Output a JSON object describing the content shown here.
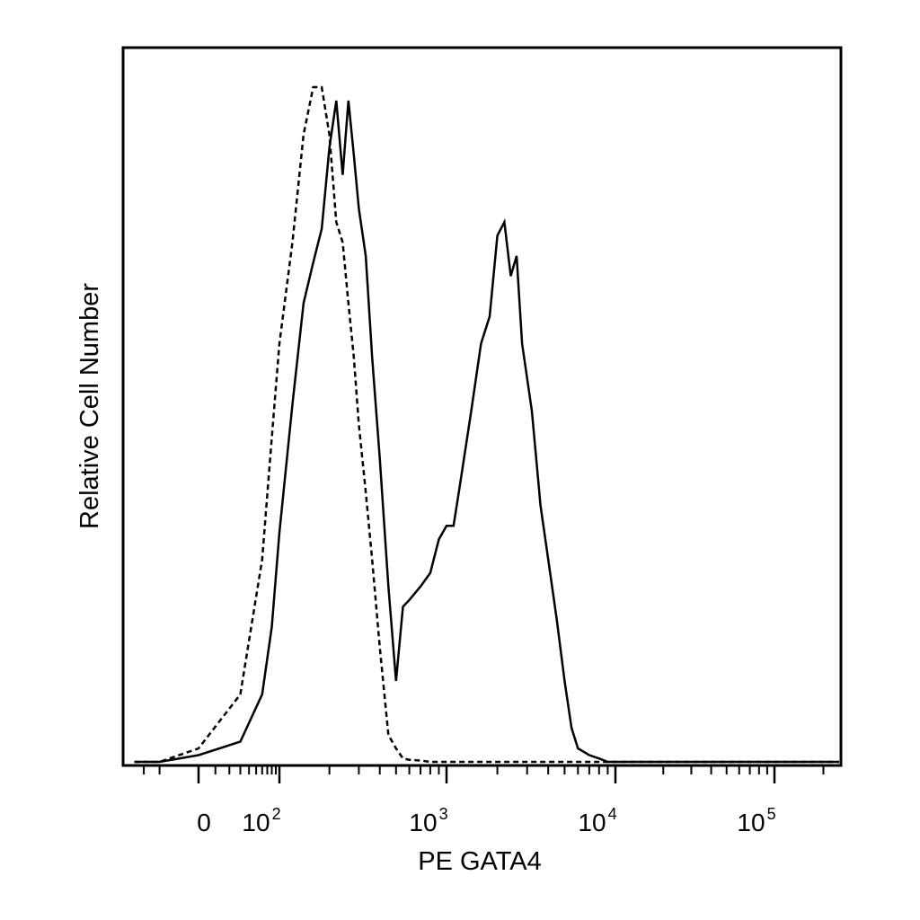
{
  "chart_data": {
    "type": "line",
    "title": "",
    "xlabel": "PE GATA4",
    "ylabel": "Relative Cell Number",
    "x_scale": "biexponential (log above ~10^2)",
    "x_ticks": [
      {
        "value": 0,
        "base": "0",
        "exp": ""
      },
      {
        "value": 100,
        "base": "10",
        "exp": "2"
      },
      {
        "value": 1000,
        "base": "10",
        "exp": "3"
      },
      {
        "value": 10000,
        "base": "10",
        "exp": "4"
      },
      {
        "value": 100000,
        "base": "10",
        "exp": "5"
      }
    ],
    "xlim": [
      -200,
      250000
    ],
    "ylim": [
      0,
      100
    ],
    "grid": false,
    "legend": "none",
    "series": [
      {
        "style": "solid",
        "x": [
          -150,
          -50,
          0,
          30,
          60,
          80,
          100,
          120,
          140,
          160,
          180,
          200,
          220,
          240,
          260,
          280,
          300,
          330,
          360,
          400,
          450,
          500,
          550,
          600,
          700,
          800,
          900,
          1000,
          1100,
          1200,
          1400,
          1600,
          1800,
          2000,
          2200,
          2400,
          2600,
          2800,
          3200,
          3600,
          4000,
          4500,
          5000,
          5500,
          6000,
          7000,
          8000,
          9000,
          10000,
          20000,
          100000,
          250000
        ],
        "y": [
          0,
          0,
          1,
          3,
          10,
          20,
          34,
          53,
          68,
          74,
          79,
          91,
          98,
          87,
          98,
          90,
          82,
          75,
          60,
          45,
          26,
          12,
          23,
          24,
          26,
          28,
          33,
          35,
          35,
          41,
          52,
          62,
          66,
          78,
          80,
          72,
          75,
          62,
          52,
          38,
          30,
          21,
          12,
          5,
          2,
          1,
          0.5,
          0,
          0,
          0,
          0,
          0
        ]
      },
      {
        "style": "dashed",
        "x": [
          -150,
          -50,
          0,
          30,
          60,
          80,
          100,
          120,
          140,
          160,
          180,
          200,
          220,
          240,
          260,
          280,
          300,
          330,
          360,
          400,
          450,
          500,
          550,
          600,
          700,
          800,
          1000,
          2000,
          5000,
          10000,
          100000,
          250000
        ],
        "y": [
          0,
          0,
          2,
          10,
          30,
          48,
          62,
          77,
          93,
          100,
          100,
          93,
          80,
          77,
          68,
          60,
          50,
          40,
          30,
          17,
          4,
          2,
          0.5,
          0.3,
          0.2,
          0,
          0,
          0,
          0,
          0,
          0,
          0
        ]
      }
    ]
  }
}
